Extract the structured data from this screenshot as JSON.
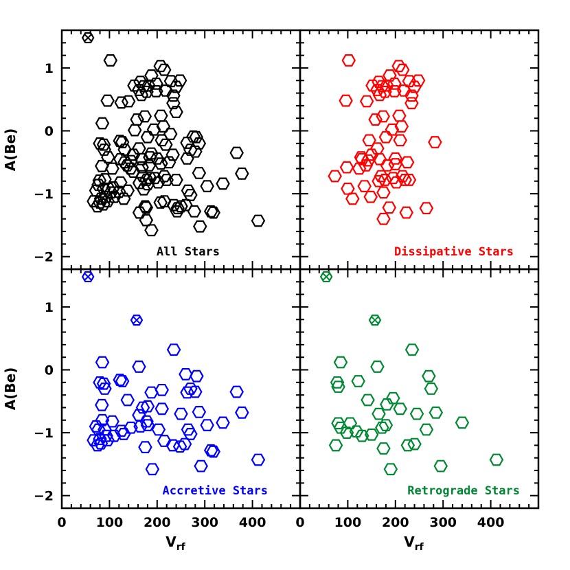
{
  "chart_data": [
    {
      "type": "scatter",
      "title": "All Stars",
      "title_color": "#000000",
      "color": "#000000",
      "xlabel": "V",
      "xlabel_sub": "rf",
      "ylabel": "A(Be)",
      "xlim": [
        0,
        500
      ],
      "ylim": [
        -2.2,
        1.6
      ],
      "xticks": [
        0,
        100,
        200,
        300,
        400
      ],
      "yticks": [
        -2,
        -1,
        0,
        1
      ],
      "crossed_points": [
        [
          55,
          1.48
        ]
      ],
      "points": [
        [
          102,
          1.12
        ],
        [
          207,
          1.03
        ],
        [
          215,
          0.97
        ],
        [
          188,
          0.88
        ],
        [
          198,
          0.75
        ],
        [
          229,
          0.79
        ],
        [
          165,
          0.78
        ],
        [
          172,
          0.71
        ],
        [
          182,
          0.72
        ],
        [
          152,
          0.72
        ],
        [
          162,
          0.65
        ],
        [
          178,
          0.62
        ],
        [
          198,
          0.63
        ],
        [
          218,
          0.64
        ],
        [
          248,
          0.8
        ],
        [
          240,
          0.7
        ],
        [
          234,
          0.56
        ],
        [
          140,
          0.47
        ],
        [
          167,
          0.57
        ],
        [
          96,
          0.48
        ],
        [
          234,
          0.44
        ],
        [
          240,
          0.3
        ],
        [
          208,
          0.24
        ],
        [
          174,
          0.23
        ],
        [
          125,
          0.45
        ],
        [
          85,
          0.12
        ],
        [
          153,
          0.01
        ],
        [
          193,
          0.02
        ],
        [
          213,
          0.07
        ],
        [
          158,
          0.18
        ],
        [
          228,
          -0.05
        ],
        [
          276,
          -0.09
        ],
        [
          282,
          -0.1
        ],
        [
          180,
          -0.1
        ],
        [
          210,
          -0.15
        ],
        [
          127,
          -0.18
        ],
        [
          263,
          -0.19
        ],
        [
          122,
          -0.16
        ],
        [
          80,
          -0.2
        ],
        [
          88,
          -0.22
        ],
        [
          89,
          -0.3
        ],
        [
          162,
          -0.28
        ],
        [
          218,
          -0.22
        ],
        [
          132,
          -0.3
        ],
        [
          188,
          -0.36
        ],
        [
          185,
          -0.42
        ],
        [
          233,
          -0.38
        ],
        [
          270,
          -0.3
        ],
        [
          280,
          -0.33
        ],
        [
          288,
          -0.2
        ],
        [
          150,
          -0.38
        ],
        [
          167,
          -0.45
        ],
        [
          200,
          -0.44
        ],
        [
          263,
          -0.44
        ],
        [
          123,
          -0.45
        ],
        [
          132,
          -0.5
        ],
        [
          145,
          -0.48
        ],
        [
          137,
          -0.55
        ],
        [
          97,
          -0.42
        ],
        [
          106,
          -0.6
        ],
        [
          168,
          -0.58
        ],
        [
          183,
          -0.55
        ],
        [
          208,
          -0.52
        ],
        [
          225,
          -0.5
        ],
        [
          84,
          -0.56
        ],
        [
          367,
          -0.35
        ],
        [
          288,
          -0.67
        ],
        [
          378,
          -0.68
        ],
        [
          144,
          -0.6
        ],
        [
          150,
          -0.65
        ],
        [
          170,
          -0.72
        ],
        [
          178,
          -0.78
        ],
        [
          185,
          -0.75
        ],
        [
          195,
          -0.75
        ],
        [
          215,
          -0.72
        ],
        [
          220,
          -0.78
        ],
        [
          202,
          -0.82
        ],
        [
          240,
          -0.78
        ],
        [
          338,
          -0.84
        ],
        [
          305,
          -0.88
        ],
        [
          180,
          -0.85
        ],
        [
          163,
          -0.83
        ],
        [
          172,
          -0.93
        ],
        [
          123,
          -0.82
        ],
        [
          108,
          -0.9
        ],
        [
          103,
          -0.98
        ],
        [
          98,
          -0.92
        ],
        [
          72,
          -0.95
        ],
        [
          88,
          -0.92
        ],
        [
          77,
          -0.86
        ],
        [
          79,
          -0.79
        ],
        [
          90,
          -0.77
        ],
        [
          138,
          -0.95
        ],
        [
          120,
          -0.97
        ],
        [
          130,
          -1.08
        ],
        [
          93,
          -1.05
        ],
        [
          110,
          -1.05
        ],
        [
          265,
          -0.95
        ],
        [
          270,
          -1.02
        ],
        [
          82,
          -1.08
        ],
        [
          80,
          -1.14
        ],
        [
          87,
          -1.17
        ],
        [
          96,
          -1.12
        ],
        [
          67,
          -1.12
        ],
        [
          75,
          -1.2
        ],
        [
          260,
          -1.18
        ],
        [
          250,
          -1.2
        ],
        [
          235,
          -1.18
        ],
        [
          215,
          -1.12
        ],
        [
          175,
          -1.2
        ],
        [
          163,
          -1.3
        ],
        [
          177,
          -1.22
        ],
        [
          207,
          -1.14
        ],
        [
          242,
          -1.28
        ],
        [
          278,
          -1.28
        ],
        [
          313,
          -1.28
        ],
        [
          318,
          -1.3
        ],
        [
          177,
          -1.42
        ],
        [
          243,
          -1.23
        ],
        [
          290,
          -1.52
        ],
        [
          188,
          -1.58
        ],
        [
          412,
          -1.43
        ]
      ]
    },
    {
      "type": "scatter",
      "title": "Dissipative Stars",
      "title_color": "#ff0000",
      "color": "#ff0000",
      "xlabel": "",
      "ylabel": "",
      "xlim": [
        0,
        500
      ],
      "ylim": [
        -2.2,
        1.6
      ],
      "xticks": [
        0,
        100,
        200,
        300,
        400
      ],
      "yticks": [
        -2,
        -1,
        0,
        1
      ],
      "crossed_points": [],
      "points": [
        [
          102,
          1.12
        ],
        [
          207,
          1.03
        ],
        [
          215,
          0.97
        ],
        [
          188,
          0.88
        ],
        [
          198,
          0.75
        ],
        [
          229,
          0.79
        ],
        [
          165,
          0.78
        ],
        [
          172,
          0.71
        ],
        [
          182,
          0.72
        ],
        [
          152,
          0.72
        ],
        [
          162,
          0.65
        ],
        [
          178,
          0.62
        ],
        [
          198,
          0.63
        ],
        [
          218,
          0.64
        ],
        [
          248,
          0.8
        ],
        [
          240,
          0.7
        ],
        [
          234,
          0.56
        ],
        [
          140,
          0.47
        ],
        [
          167,
          0.57
        ],
        [
          96,
          0.48
        ],
        [
          234,
          0.44
        ],
        [
          208,
          0.24
        ],
        [
          174,
          0.23
        ],
        [
          193,
          0.02
        ],
        [
          213,
          0.07
        ],
        [
          158,
          0.18
        ],
        [
          180,
          -0.1
        ],
        [
          210,
          -0.15
        ],
        [
          283,
          -0.18
        ],
        [
          145,
          -0.15
        ],
        [
          130,
          -0.45
        ],
        [
          162,
          -0.28
        ],
        [
          150,
          -0.38
        ],
        [
          167,
          -0.45
        ],
        [
          200,
          -0.44
        ],
        [
          138,
          -0.55
        ],
        [
          143,
          -0.47
        ],
        [
          124,
          -0.6
        ],
        [
          183,
          -0.55
        ],
        [
          225,
          -0.5
        ],
        [
          200,
          -0.53
        ],
        [
          98,
          -0.58
        ],
        [
          128,
          -0.42
        ],
        [
          170,
          -0.72
        ],
        [
          195,
          -0.75
        ],
        [
          215,
          -0.72
        ],
        [
          220,
          -0.78
        ],
        [
          202,
          -0.82
        ],
        [
          229,
          -0.78
        ],
        [
          178,
          -0.78
        ],
        [
          165,
          -0.8
        ],
        [
          73,
          -0.72
        ],
        [
          100,
          -0.92
        ],
        [
          135,
          -0.88
        ],
        [
          175,
          -0.98
        ],
        [
          110,
          -1.08
        ],
        [
          148,
          -1.05
        ],
        [
          187,
          -1.22
        ],
        [
          223,
          -1.3
        ],
        [
          265,
          -1.23
        ],
        [
          175,
          -1.4
        ]
      ]
    },
    {
      "type": "scatter",
      "title": "Accretive Stars",
      "title_color": "#0000ff",
      "color": "#0000ff",
      "xlabel": "V",
      "xlabel_sub": "rf",
      "ylabel": "A(Be)",
      "xlim": [
        0,
        500
      ],
      "ylim": [
        -2.2,
        1.6
      ],
      "xticks": [
        0,
        100,
        200,
        300,
        400
      ],
      "yticks": [
        -2,
        -1,
        0,
        1
      ],
      "crossed_points": [
        [
          55,
          1.48
        ],
        [
          157,
          0.79
        ]
      ],
      "points": [
        [
          235,
          0.32
        ],
        [
          85,
          0.12
        ],
        [
          162,
          0.05
        ],
        [
          260,
          -0.07
        ],
        [
          283,
          -0.1
        ],
        [
          80,
          -0.2
        ],
        [
          88,
          -0.22
        ],
        [
          122,
          -0.16
        ],
        [
          127,
          -0.18
        ],
        [
          210,
          -0.32
        ],
        [
          188,
          -0.36
        ],
        [
          263,
          -0.36
        ],
        [
          270,
          -0.3
        ],
        [
          280,
          -0.35
        ],
        [
          90,
          -0.3
        ],
        [
          367,
          -0.35
        ],
        [
          378,
          -0.68
        ],
        [
          138,
          -0.48
        ],
        [
          84,
          -0.56
        ],
        [
          170,
          -0.6
        ],
        [
          180,
          -0.58
        ],
        [
          210,
          -0.62
        ],
        [
          250,
          -0.7
        ],
        [
          288,
          -0.67
        ],
        [
          106,
          -0.82
        ],
        [
          162,
          -0.72
        ],
        [
          85,
          -0.8
        ],
        [
          338,
          -0.84
        ],
        [
          305,
          -0.88
        ],
        [
          178,
          -0.82
        ],
        [
          165,
          -0.9
        ],
        [
          77,
          -0.95
        ],
        [
          90,
          -0.95
        ],
        [
          72,
          -0.9
        ],
        [
          125,
          -0.97
        ],
        [
          130,
          -1.02
        ],
        [
          145,
          -0.92
        ],
        [
          180,
          -0.88
        ],
        [
          203,
          -0.95
        ],
        [
          265,
          -0.95
        ],
        [
          270,
          -1.02
        ],
        [
          80,
          -1.1
        ],
        [
          82,
          -1.17
        ],
        [
          96,
          -1.12
        ],
        [
          67,
          -1.12
        ],
        [
          75,
          -1.2
        ],
        [
          93,
          -1.05
        ],
        [
          110,
          -1.05
        ],
        [
          215,
          -1.13
        ],
        [
          233,
          -1.2
        ],
        [
          248,
          -1.22
        ],
        [
          258,
          -1.18
        ],
        [
          175,
          -1.23
        ],
        [
          313,
          -1.28
        ],
        [
          318,
          -1.3
        ],
        [
          190,
          -1.58
        ],
        [
          292,
          -1.53
        ],
        [
          412,
          -1.43
        ]
      ]
    },
    {
      "type": "scatter",
      "title": "Retrograde Stars",
      "title_color": "#008833",
      "color": "#008833",
      "xlabel": "V",
      "xlabel_sub": "rf",
      "ylabel": "",
      "xlim": [
        0,
        500
      ],
      "ylim": [
        -2.2,
        1.6
      ],
      "xticks": [
        0,
        100,
        200,
        300,
        400
      ],
      "yticks": [
        -2,
        -1,
        0,
        1
      ],
      "crossed_points": [
        [
          55,
          1.48
        ],
        [
          157,
          0.79
        ]
      ],
      "points": [
        [
          235,
          0.32
        ],
        [
          85,
          0.12
        ],
        [
          162,
          0.05
        ],
        [
          270,
          -0.1
        ],
        [
          78,
          -0.2
        ],
        [
          80,
          -0.27
        ],
        [
          122,
          -0.18
        ],
        [
          195,
          -0.45
        ],
        [
          142,
          -0.48
        ],
        [
          182,
          -0.55
        ],
        [
          275,
          -0.3
        ],
        [
          165,
          -0.7
        ],
        [
          210,
          -0.62
        ],
        [
          245,
          -0.7
        ],
        [
          285,
          -0.68
        ],
        [
          80,
          -0.85
        ],
        [
          85,
          -0.92
        ],
        [
          105,
          -0.85
        ],
        [
          118,
          -0.98
        ],
        [
          98,
          -1.0
        ],
        [
          150,
          -1.03
        ],
        [
          172,
          -0.92
        ],
        [
          180,
          -0.88
        ],
        [
          265,
          -0.95
        ],
        [
          340,
          -0.84
        ],
        [
          130,
          -1.05
        ],
        [
          240,
          -1.18
        ],
        [
          226,
          -1.2
        ],
        [
          175,
          -1.25
        ],
        [
          75,
          -1.2
        ],
        [
          190,
          -1.58
        ],
        [
          295,
          -1.53
        ],
        [
          412,
          -1.43
        ]
      ]
    }
  ]
}
